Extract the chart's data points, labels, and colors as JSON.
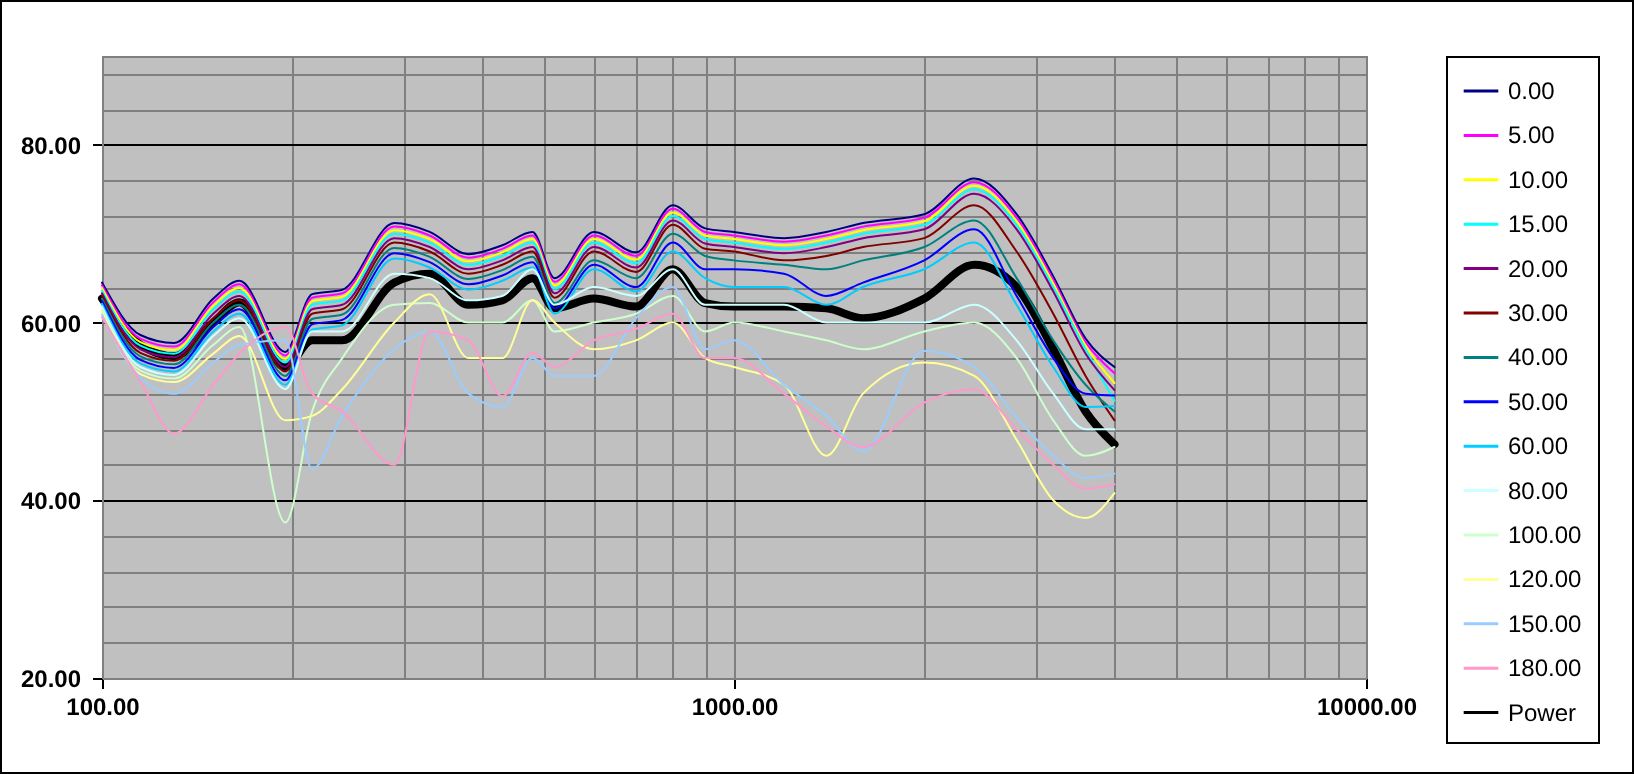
{
  "chart_data": {
    "type": "line",
    "log": "x",
    "grid": true,
    "legend": "right",
    "xlim": [
      100,
      10000
    ],
    "ylim": [
      20,
      90
    ],
    "xticks": [
      {
        "value": 100,
        "label": "100.00"
      },
      {
        "value": 200,
        "label": null
      },
      {
        "value": 300,
        "label": null
      },
      {
        "value": 400,
        "label": null
      },
      {
        "value": 500,
        "label": null
      },
      {
        "value": 600,
        "label": null
      },
      {
        "value": 700,
        "label": null
      },
      {
        "value": 800,
        "label": null
      },
      {
        "value": 900,
        "label": null
      },
      {
        "value": 1000,
        "label": "1000.00"
      },
      {
        "value": 2000,
        "label": null
      },
      {
        "value": 3000,
        "label": null
      },
      {
        "value": 4000,
        "label": null
      },
      {
        "value": 5000,
        "label": null
      },
      {
        "value": 6000,
        "label": null
      },
      {
        "value": 7000,
        "label": null
      },
      {
        "value": 8000,
        "label": null
      },
      {
        "value": 9000,
        "label": null
      },
      {
        "value": 10000,
        "label": "10000.00"
      }
    ],
    "yticks": [
      {
        "value": 20,
        "label": "20.00"
      },
      {
        "value": 24,
        "label": null
      },
      {
        "value": 28,
        "label": null
      },
      {
        "value": 32,
        "label": null
      },
      {
        "value": 36,
        "label": null
      },
      {
        "value": 40,
        "label": "40.00"
      },
      {
        "value": 44,
        "label": null
      },
      {
        "value": 48,
        "label": null
      },
      {
        "value": 52,
        "label": null
      },
      {
        "value": 56,
        "label": null
      },
      {
        "value": 60,
        "label": "60.00"
      },
      {
        "value": 64,
        "label": null
      },
      {
        "value": 68,
        "label": null
      },
      {
        "value": 72,
        "label": null
      },
      {
        "value": 76,
        "label": null
      },
      {
        "value": 80,
        "label": "80.00"
      },
      {
        "value": 84,
        "label": null
      },
      {
        "value": 88,
        "label": null
      }
    ],
    "x": [
      100,
      115,
      130,
      150,
      165,
      195,
      215,
      240,
      290,
      330,
      380,
      430,
      480,
      520,
      600,
      700,
      800,
      900,
      1000,
      1200,
      1400,
      1600,
      2000,
      2400,
      2800,
      3200,
      3600,
      4000
    ],
    "series": [
      {
        "name": "0.00",
        "color": "#000080",
        "values": [
          64.5,
          58.6,
          57.7,
          62.7,
          64.7,
          56.7,
          63.2,
          63.7,
          71.2,
          70.2,
          67.7,
          68.7,
          70.2,
          65,
          70.2,
          67.9,
          73.2,
          70.6,
          70.2,
          69.5,
          70.2,
          71.2,
          72.2,
          76.2,
          72.2,
          65.2,
          58.2,
          55
        ]
      },
      {
        "name": "5.00",
        "color": "#ff00ff",
        "values": [
          64.2,
          58.2,
          57.3,
          62.3,
          64.3,
          56.3,
          62.8,
          63.3,
          70.8,
          69.8,
          67.3,
          68.3,
          69.8,
          64.6,
          69.8,
          67.5,
          72.8,
          70.2,
          69.8,
          69.1,
          69.8,
          70.8,
          71.8,
          75.8,
          71.8,
          64.8,
          57.8,
          54.3
        ]
      },
      {
        "name": "10.00",
        "color": "#ffff00",
        "values": [
          63.9,
          57.8,
          56.9,
          61.9,
          63.9,
          55.9,
          62.4,
          62.9,
          70.4,
          69.4,
          66.9,
          67.9,
          69.4,
          64.2,
          69.4,
          67.1,
          72.4,
          69.8,
          69.4,
          68.7,
          69.4,
          70.4,
          71.4,
          75.4,
          71.4,
          64.4,
          57.4,
          53.2
        ]
      },
      {
        "name": "15.00",
        "color": "#00ffff",
        "values": [
          63.6,
          57.4,
          56.5,
          61.5,
          63.5,
          55.5,
          62,
          62.5,
          70,
          69,
          66.5,
          67.5,
          69,
          63.8,
          69,
          66.7,
          72,
          69.4,
          69,
          68.3,
          69,
          70,
          71,
          75,
          71,
          64,
          57,
          51.2
        ]
      },
      {
        "name": "20.00",
        "color": "#800080",
        "values": [
          63.3,
          57,
          56.1,
          61,
          63,
          55,
          61.5,
          62,
          69.5,
          68.5,
          66,
          67,
          68.5,
          63.3,
          68.5,
          66.2,
          71.5,
          68.9,
          68.5,
          67.8,
          68.5,
          69.5,
          70.5,
          74.5,
          70.5,
          63.5,
          56.5,
          52.4
        ]
      },
      {
        "name": "30.00",
        "color": "#800000",
        "values": [
          63,
          56.6,
          55.7,
          60.5,
          62.5,
          54.5,
          61,
          61.5,
          69,
          68,
          65.5,
          66.5,
          68,
          62.8,
          68,
          65.7,
          71,
          68.3,
          68,
          67,
          67.5,
          68.5,
          69.5,
          73.2,
          68,
          61,
          54,
          49
        ]
      },
      {
        "name": "40.00",
        "color": "#008080",
        "values": [
          62.7,
          56.2,
          55.3,
          60,
          62,
          54,
          60.4,
          60.9,
          68.4,
          67.4,
          64.9,
          65.9,
          67.4,
          62.2,
          67,
          65,
          70,
          67.5,
          67,
          66.5,
          66,
          67,
          68.5,
          71.5,
          65,
          58,
          53,
          50
        ]
      },
      {
        "name": "50.00",
        "color": "#0000ff",
        "values": [
          62.4,
          55.8,
          54.9,
          59.5,
          61.5,
          53.5,
          59.8,
          60.3,
          67.8,
          66.8,
          64.3,
          65.3,
          66.8,
          61.6,
          66.5,
          64,
          69,
          66,
          66,
          65.5,
          63,
          64.5,
          67,
          70.5,
          63,
          56,
          52,
          51.8
        ]
      },
      {
        "name": "60.00",
        "color": "#00ccff",
        "values": [
          62.1,
          55.4,
          54.5,
          59,
          61,
          53,
          59.2,
          59.7,
          67.2,
          66.2,
          63.7,
          64.7,
          66.2,
          61,
          66,
          63.5,
          68,
          65,
          64,
          64,
          62,
          64,
          66,
          69,
          62,
          55,
          50.5,
          50.6
        ]
      },
      {
        "name": "80.00",
        "color": "#ccffff",
        "values": [
          61.8,
          55,
          54.1,
          58.5,
          60.5,
          52.5,
          59,
          59,
          65.5,
          65,
          62.5,
          63,
          66,
          62,
          64,
          63,
          66,
          62,
          62,
          62,
          60,
          60,
          60,
          62,
          58,
          52,
          48,
          48
        ]
      },
      {
        "name": "100.00",
        "color": "#ccffcc",
        "values": [
          61.5,
          54.6,
          53.7,
          57.5,
          59.5,
          37.5,
          50,
          56,
          62,
          62.2,
          60,
          60,
          62.5,
          59,
          60,
          61,
          63,
          59,
          60,
          59,
          58,
          57,
          59,
          60,
          56,
          49,
          45,
          46
        ]
      },
      {
        "name": "120.00",
        "color": "#ffff99",
        "values": [
          61.2,
          54.2,
          53.3,
          56.5,
          58.5,
          49,
          49.5,
          52.5,
          60,
          63.2,
          56,
          56,
          62.5,
          60,
          57,
          58,
          60,
          56,
          55,
          53,
          45,
          52,
          55.5,
          54,
          46.8,
          40,
          38,
          40.8
        ]
      },
      {
        "name": "150.00",
        "color": "#99ccff",
        "values": [
          60.9,
          53.8,
          52,
          55.5,
          57.5,
          58,
          43.5,
          49.5,
          57,
          59,
          52,
          50.5,
          56,
          54,
          54,
          60.5,
          64,
          57,
          58,
          53,
          49.5,
          45.5,
          56.8,
          55,
          49.3,
          45,
          42.5,
          43
        ]
      },
      {
        "name": "180.00",
        "color": "#ff99cc",
        "values": [
          60.6,
          53.4,
          47.5,
          53,
          56.5,
          59.5,
          52,
          50,
          44,
          59,
          58,
          51.7,
          56.6,
          55,
          58,
          59.3,
          61,
          56,
          56,
          52,
          48.3,
          46,
          51,
          52.5,
          48,
          44,
          41.3,
          41.8
        ]
      },
      {
        "name": "Power",
        "color": "#000000",
        "values": [
          62.7,
          57.5,
          56.2,
          60,
          62.3,
          55,
          58,
          58,
          64.5,
          65.5,
          62,
          62.5,
          65,
          61.6,
          62.7,
          61.8,
          66,
          62.2,
          61.8,
          61.8,
          61.6,
          60.5,
          62.7,
          66.5,
          64,
          57,
          50,
          46.3
        ]
      }
    ]
  }
}
